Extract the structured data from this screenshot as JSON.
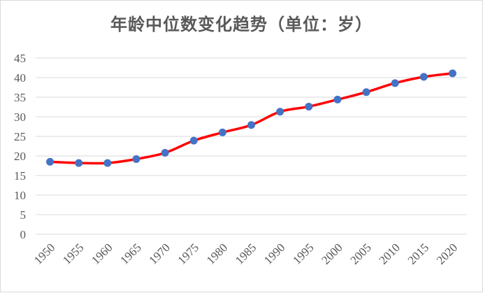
{
  "chart_data": {
    "type": "line",
    "title": "年龄中位数变化趋势（单位：岁）",
    "x": [
      "1950",
      "1955",
      "1960",
      "1965",
      "1970",
      "1975",
      "1980",
      "1985",
      "1990",
      "1995",
      "2000",
      "2005",
      "2010",
      "2015",
      "2020"
    ],
    "series": [
      {
        "values": [
          18.5,
          18.2,
          18.2,
          19.2,
          20.8,
          23.9,
          26.0,
          27.9,
          31.3,
          32.6,
          34.4,
          36.3,
          38.6,
          40.2,
          41.1
        ]
      }
    ],
    "ylim": [
      0,
      45
    ],
    "yticks": [
      "0",
      "5",
      "10",
      "15",
      "20",
      "25",
      "30",
      "35",
      "40",
      "45"
    ],
    "grid": true,
    "legend": "none",
    "colors": {
      "line": "#ff0000",
      "marker": "#4472c4",
      "grid": "#d9d9d9",
      "text": "#595959"
    }
  }
}
